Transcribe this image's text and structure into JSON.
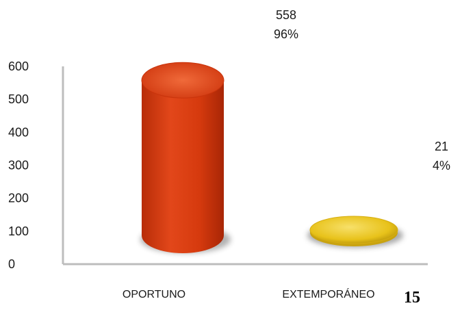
{
  "page": {
    "page_number": "15"
  },
  "chart_data": {
    "type": "bar",
    "style": "3d-cylinder",
    "categories": [
      "OPORTUNO",
      "EXTEMPORÁNEO"
    ],
    "values": [
      558,
      21
    ],
    "percent_labels": [
      "96%",
      "4%"
    ],
    "value_labels": [
      "558",
      "21"
    ],
    "colors": [
      "#d63a0e",
      "#e8c21a"
    ],
    "ylim": [
      0,
      600
    ],
    "yticks": [
      0,
      100,
      200,
      300,
      400,
      500,
      600
    ],
    "title": "",
    "xlabel": "",
    "ylabel": "",
    "grid": false,
    "legend": "none"
  }
}
